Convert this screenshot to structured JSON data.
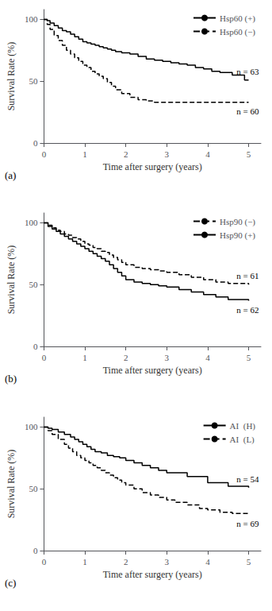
{
  "chart_data": [
    {
      "type": "step",
      "xlabel": "Time after surgery (years)",
      "ylabel": "Survival Rate (%)",
      "xlim": [
        0,
        5.3
      ],
      "ylim": [
        0,
        108
      ],
      "xticks": [
        0,
        1,
        2,
        3,
        4,
        5
      ],
      "yticks": [
        0,
        50,
        100
      ],
      "grid": false,
      "legend": "upper right",
      "series": [
        {
          "name": "Hsp60 (+)",
          "color": "#000000",
          "line_style": "solid",
          "x": [
            0,
            0.08,
            0.15,
            0.25,
            0.35,
            0.45,
            0.55,
            0.65,
            0.75,
            0.85,
            0.95,
            1.05,
            1.15,
            1.25,
            1.35,
            1.45,
            1.55,
            1.65,
            1.75,
            1.9,
            2.1,
            2.3,
            2.5,
            2.7,
            2.9,
            3.1,
            3.3,
            3.5,
            3.7,
            3.9,
            4.1,
            4.3,
            4.6,
            4.9,
            5.0
          ],
          "values": [
            100,
            99,
            97,
            95,
            93,
            91,
            90,
            88,
            86,
            84,
            82,
            81,
            80,
            79,
            78,
            77,
            76,
            75,
            74,
            73,
            72,
            70,
            68,
            67,
            66,
            65,
            64,
            63,
            61,
            60,
            58,
            57,
            55,
            51,
            51
          ]
        },
        {
          "name": "Hsp60 (−)",
          "color": "#000000",
          "line_style": "dashed",
          "x": [
            0,
            0.08,
            0.15,
            0.25,
            0.35,
            0.45,
            0.55,
            0.65,
            0.75,
            0.85,
            0.95,
            1.05,
            1.15,
            1.25,
            1.35,
            1.45,
            1.55,
            1.65,
            1.75,
            1.9,
            2.1,
            2.3,
            2.5,
            2.7,
            2.9,
            5.0
          ],
          "values": [
            100,
            96,
            92,
            87,
            83,
            79,
            75,
            72,
            69,
            66,
            63,
            61,
            58,
            56,
            54,
            52,
            49,
            46,
            43,
            40,
            37,
            35,
            34,
            33,
            33,
            33
          ]
        }
      ],
      "annotations": [
        {
          "text": "n = 63",
          "x": 5.25,
          "y": 54
        },
        {
          "text": "n = 60",
          "x": 5.25,
          "y": 30
        },
        {
          "text": "(a)"
        }
      ]
    },
    {
      "type": "step",
      "xlabel": "Time after surgery (years)",
      "ylabel": "Survival Rate (%)",
      "xlim": [
        0,
        5.3
      ],
      "ylim": [
        0,
        108
      ],
      "xticks": [
        0,
        1,
        2,
        3,
        4,
        5
      ],
      "yticks": [
        0,
        50,
        100
      ],
      "grid": false,
      "legend": "upper right",
      "series": [
        {
          "name": "Hsp90 (−)",
          "color": "#000000",
          "line_style": "dashed",
          "x": [
            0,
            0.1,
            0.2,
            0.3,
            0.4,
            0.5,
            0.6,
            0.7,
            0.8,
            0.9,
            1.0,
            1.1,
            1.2,
            1.3,
            1.4,
            1.5,
            1.6,
            1.7,
            1.8,
            1.9,
            2.0,
            2.2,
            2.4,
            2.6,
            2.8,
            3.0,
            3.3,
            3.6,
            3.9,
            4.2,
            4.5,
            5.0
          ],
          "values": [
            100,
            98,
            96,
            94,
            93,
            91,
            90,
            88,
            87,
            85,
            83,
            82,
            80,
            79,
            77,
            76,
            74,
            72,
            70,
            68,
            66,
            64,
            63,
            62,
            61,
            60,
            58,
            56,
            54,
            52,
            51,
            50
          ]
        },
        {
          "name": "Hsp90 (+)",
          "color": "#000000",
          "line_style": "solid",
          "x": [
            0,
            0.1,
            0.2,
            0.3,
            0.4,
            0.5,
            0.6,
            0.7,
            0.8,
            0.9,
            1.0,
            1.1,
            1.2,
            1.3,
            1.4,
            1.5,
            1.6,
            1.7,
            1.8,
            1.9,
            2.0,
            2.2,
            2.4,
            2.6,
            2.8,
            3.0,
            3.3,
            3.6,
            3.9,
            4.2,
            4.5,
            5.0
          ],
          "values": [
            100,
            97,
            95,
            93,
            91,
            89,
            87,
            85,
            83,
            81,
            79,
            77,
            75,
            73,
            71,
            69,
            66,
            63,
            60,
            57,
            54,
            52,
            51,
            50,
            49,
            48,
            46,
            44,
            42,
            40,
            38,
            37
          ]
        }
      ],
      "annotations": [
        {
          "text": "n = 61",
          "x": 5.25,
          "y": 53
        },
        {
          "text": "n = 62",
          "x": 5.25,
          "y": 34
        },
        {
          "text": "(b)"
        }
      ]
    },
    {
      "type": "step",
      "xlabel": "Time after surgery (years)",
      "ylabel": "Survival Rate (%)",
      "xlim": [
        0,
        5.3
      ],
      "ylim": [
        0,
        108
      ],
      "xticks": [
        0,
        1,
        2,
        3,
        4,
        5
      ],
      "yticks": [
        0,
        50,
        100
      ],
      "grid": false,
      "legend": "upper right",
      "series": [
        {
          "name": "AI  (H)",
          "color": "#000000",
          "line_style": "solid",
          "x": [
            0,
            0.1,
            0.2,
            0.35,
            0.5,
            0.65,
            0.75,
            0.85,
            0.95,
            1.05,
            1.15,
            1.25,
            1.4,
            1.55,
            1.7,
            1.85,
            2.0,
            2.2,
            2.4,
            2.6,
            2.8,
            3.0,
            3.5,
            4.0,
            4.5,
            5.0
          ],
          "values": [
            100,
            99,
            98,
            96,
            94,
            92,
            90,
            88,
            86,
            84,
            82,
            80,
            79,
            77,
            76,
            75,
            73,
            71,
            69,
            67,
            65,
            63,
            60,
            55,
            52,
            51
          ]
        },
        {
          "name": "AI  (L)",
          "color": "#000000",
          "line_style": "dashed",
          "x": [
            0,
            0.1,
            0.2,
            0.35,
            0.5,
            0.6,
            0.7,
            0.8,
            0.9,
            1.0,
            1.1,
            1.2,
            1.3,
            1.4,
            1.5,
            1.6,
            1.7,
            1.8,
            1.9,
            2.0,
            2.2,
            2.4,
            2.6,
            2.8,
            3.0,
            3.2,
            3.5,
            3.8,
            4.0,
            4.3,
            4.6,
            5.0
          ],
          "values": [
            100,
            97,
            94,
            90,
            86,
            83,
            80,
            77,
            75,
            73,
            71,
            69,
            67,
            65,
            63,
            61,
            59,
            57,
            55,
            53,
            50,
            47,
            45,
            43,
            41,
            39,
            37,
            34,
            33,
            31,
            30,
            29
          ]
        }
      ],
      "annotations": [
        {
          "text": "n = 54",
          "x": 5.25,
          "y": 54
        },
        {
          "text": "n = 69",
          "x": 5.25,
          "y": 26
        },
        {
          "text": "(c)"
        }
      ]
    }
  ]
}
